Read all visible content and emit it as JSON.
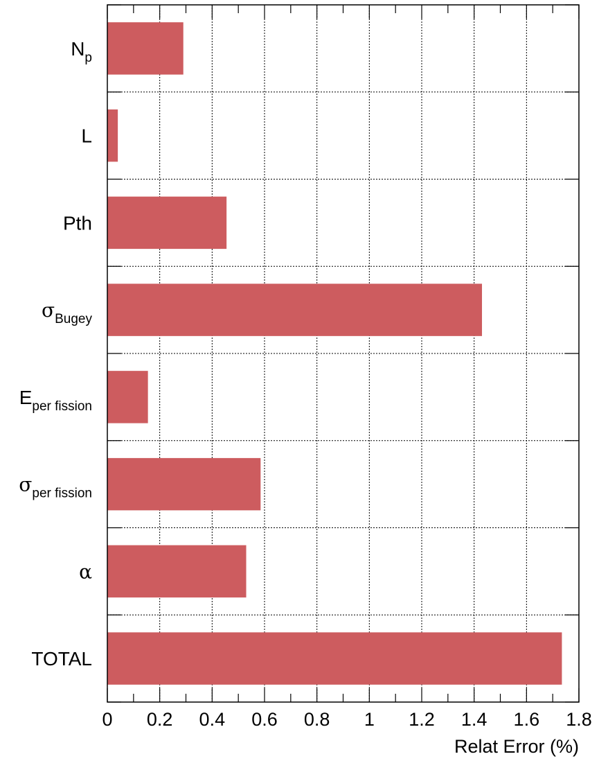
{
  "chart_data": {
    "type": "bar",
    "orientation": "horizontal",
    "xlabel": "Relat Error (%)",
    "xlim": [
      0,
      1.8
    ],
    "xticks": [
      "0",
      "0.2",
      "0.4",
      "0.6",
      "0.8",
      "1",
      "1.2",
      "1.4",
      "1.6",
      "1.8"
    ],
    "grid": true,
    "bar_color": "#cd5c5f",
    "categories": [
      {
        "main": "N",
        "sub": "p",
        "greek": false,
        "value": 0.29
      },
      {
        "main": "L",
        "sub": "",
        "greek": false,
        "value": 0.04
      },
      {
        "main": "Pth",
        "sub": "",
        "greek": false,
        "value": 0.455
      },
      {
        "main": "σ",
        "sub": "Bugey",
        "greek": true,
        "value": 1.43
      },
      {
        "main": "E",
        "sub": "per fission",
        "greek": false,
        "value": 0.155
      },
      {
        "main": "σ",
        "sub": "per fission",
        "greek": true,
        "value": 0.585
      },
      {
        "main": "α",
        "sub": "",
        "greek": true,
        "value": 0.53
      },
      {
        "main": "TOTAL",
        "sub": "",
        "greek": false,
        "value": 1.735
      }
    ]
  }
}
